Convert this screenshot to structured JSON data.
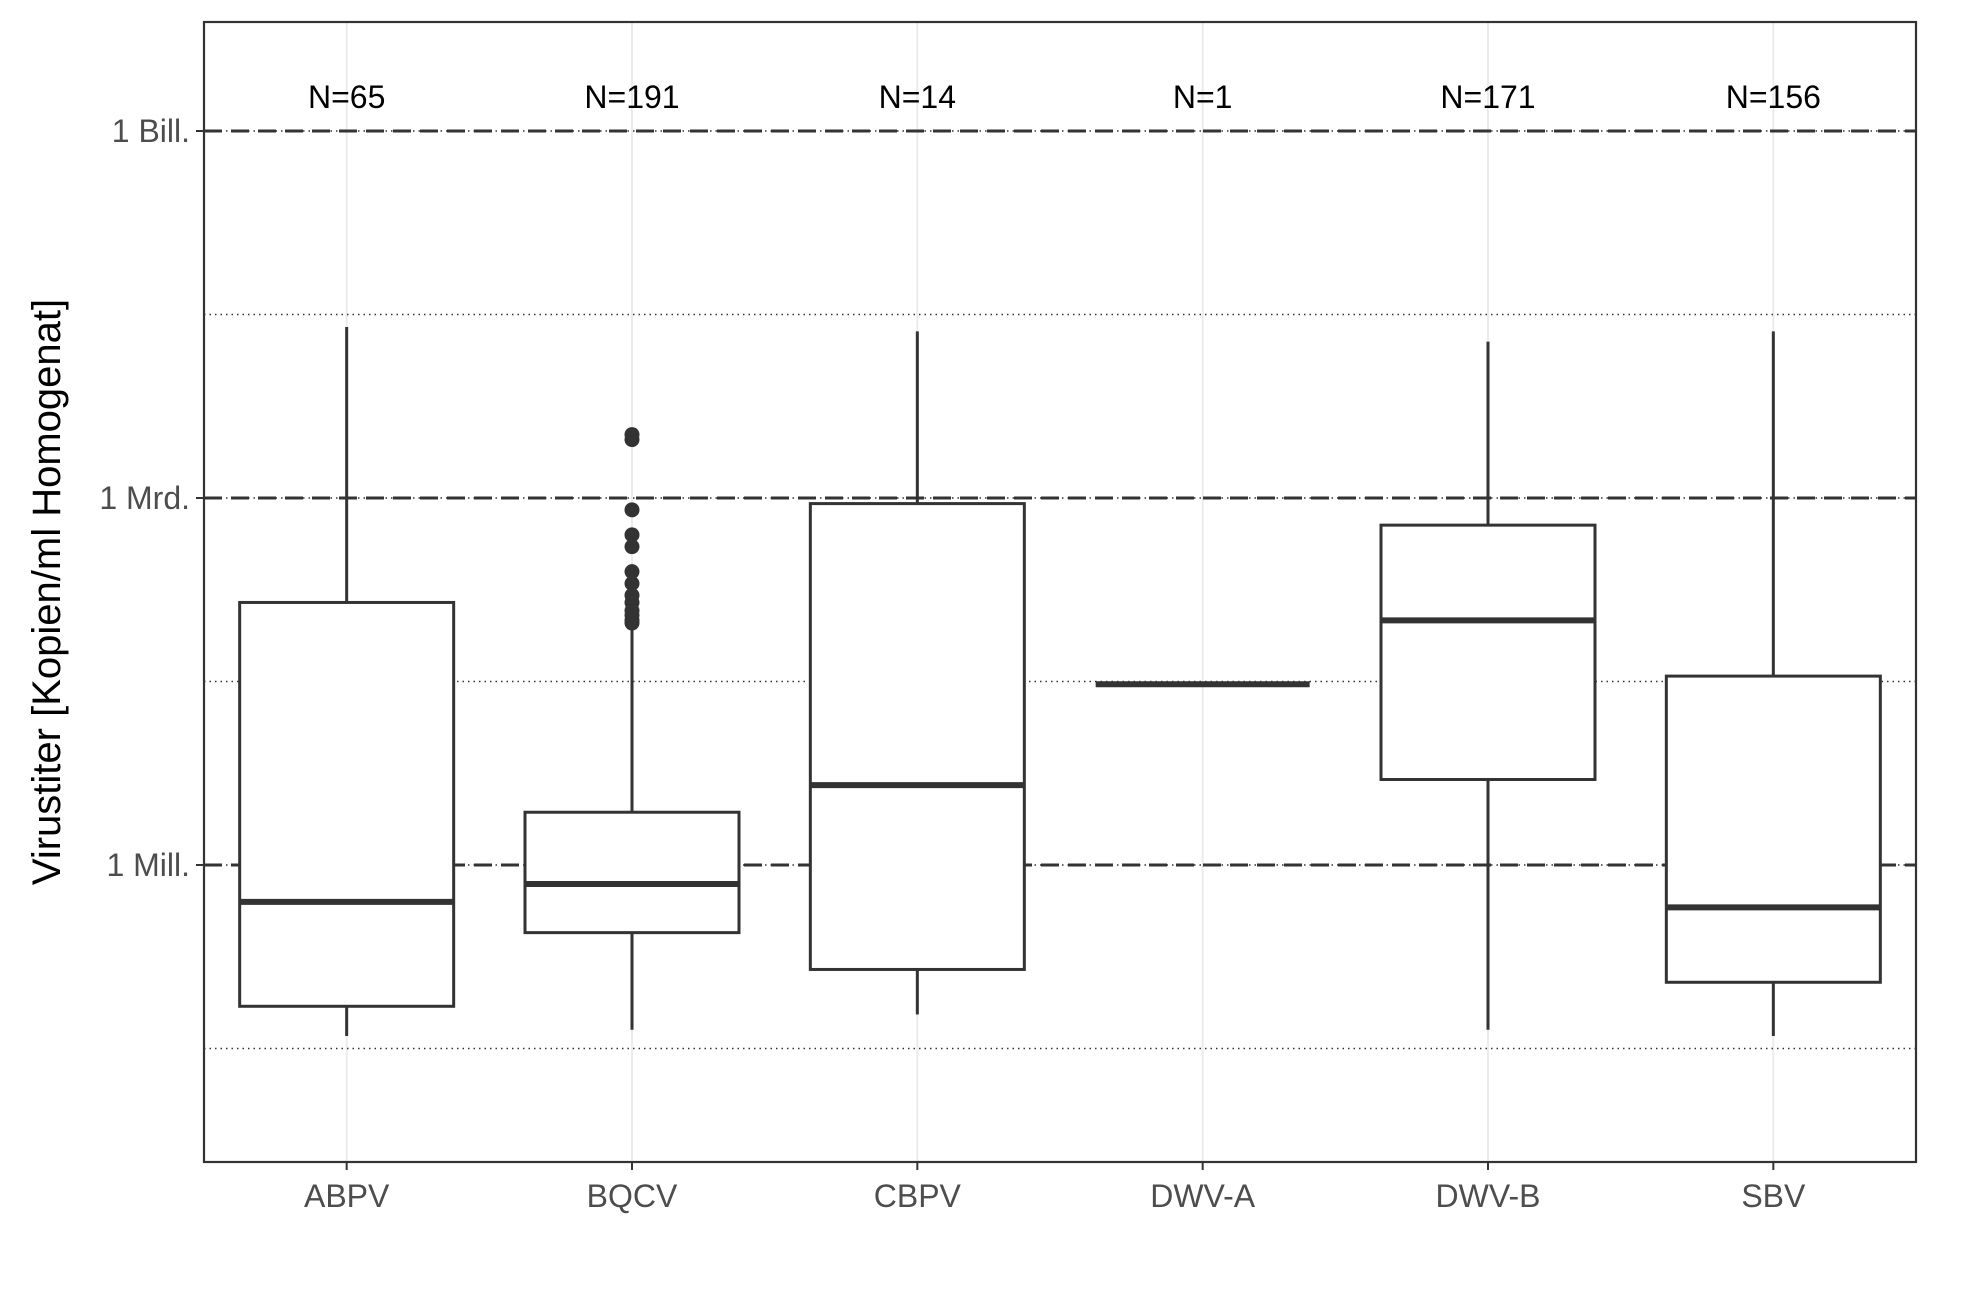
{
  "chart_data": {
    "type": "box",
    "title": "",
    "xlabel": "",
    "ylabel": "Virustiter [Kopien/ml Homogenat]",
    "y_scale": "log10",
    "ylim": [
      10000,
      200000000000000
    ],
    "y_major_ticks": [
      {
        "value": 1000000,
        "label": "1 Mill."
      },
      {
        "value": 1000000000,
        "label": "1 Mrd."
      },
      {
        "value": 1000000000000,
        "label": "1 Bill."
      }
    ],
    "y_minor_gridlines": [
      31622,
      31622776,
      31622776601
    ],
    "y_dotted_gridlines": [
      31623,
      1000000,
      31623000,
      1000000000,
      31623000000,
      1000000000000
    ],
    "categories": [
      "ABPV",
      "BQCV",
      "CBPV",
      "DWV-A",
      "DWV-B",
      "SBV"
    ],
    "counts": [
      "N=65",
      "N=191",
      "N=14",
      "N=1",
      "N=171",
      "N=156"
    ],
    "boxes": [
      {
        "category": "ABPV",
        "whisker_low": 40000,
        "q1": 70000,
        "median": 500000,
        "q3": 140000000,
        "whisker_high": 25000000000
      },
      {
        "category": "BQCV",
        "whisker_low": 45000,
        "q1": 280000,
        "median": 700000,
        "q3": 2700000,
        "whisker_high": 160000000
      },
      {
        "category": "CBPV",
        "whisker_low": 60000,
        "q1": 140000,
        "median": 4500000,
        "q3": 900000000,
        "whisker_high": 23000000000
      },
      {
        "category": "DWV-A",
        "whisker_low": 30000000,
        "q1": 30000000,
        "median": 30000000,
        "q3": 30000000,
        "whisker_high": 30000000
      },
      {
        "category": "DWV-B",
        "whisker_low": 45000,
        "q1": 5000000,
        "median": 100000000,
        "q3": 600000000,
        "whisker_high": 19000000000
      },
      {
        "category": "SBV",
        "whisker_low": 40000,
        "q1": 110000,
        "median": 450000,
        "q3": 35000000,
        "whisker_high": 23000000000
      }
    ],
    "outliers": [
      {
        "category": "BQCV",
        "values": [
          3000000000,
          3300000000,
          800000000,
          500000000,
          400000000,
          250000000,
          200000000,
          160000000,
          140000000,
          120000000,
          110000000,
          100000000,
          95000000
        ]
      }
    ],
    "grid": true,
    "legend": "none"
  },
  "colors": {
    "box_stroke": "#333333",
    "outlier_fill": "#333333",
    "vertical_grid": "#ebebeb",
    "dashed_line": "#333333",
    "dotted_line": "#333333",
    "panel_border": "#333333",
    "tick_label": "#4d4d4d"
  }
}
